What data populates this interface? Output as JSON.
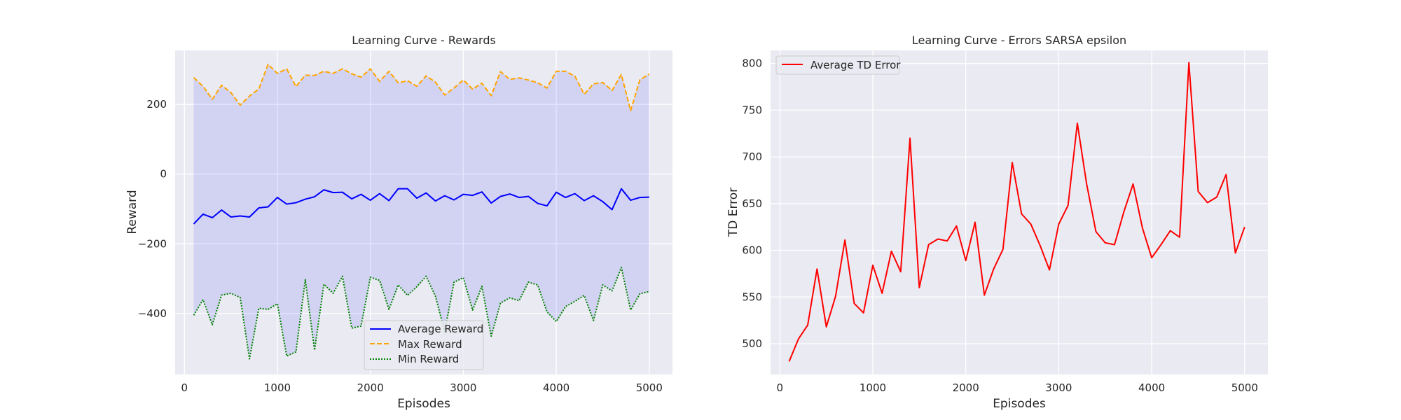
{
  "chart_data": [
    {
      "type": "line",
      "title": "Learning Curve - Rewards",
      "xlabel": "Episodes",
      "ylabel": "Reward",
      "xlim": [
        -100,
        5250
      ],
      "ylim": [
        -575,
        355
      ],
      "xticks": [
        0,
        1000,
        2000,
        3000,
        4000,
        5000
      ],
      "yticks": [
        -400,
        -200,
        0,
        200
      ],
      "grid": true,
      "legend": "bottom-center",
      "x": [
        100,
        200,
        300,
        400,
        500,
        600,
        700,
        800,
        900,
        1000,
        1100,
        1200,
        1300,
        1400,
        1500,
        1600,
        1700,
        1800,
        1900,
        2000,
        2100,
        2200,
        2300,
        2400,
        2500,
        2600,
        2700,
        2800,
        2900,
        3000,
        3100,
        3200,
        3300,
        3400,
        3500,
        3600,
        3700,
        3800,
        3900,
        4000,
        4100,
        4200,
        4300,
        4400,
        4500,
        4600,
        4700,
        4800,
        4900,
        5000
      ],
      "fill_between": {
        "lower": "Min Reward",
        "upper": "Max Reward",
        "color": "#0000ff",
        "opacity": 0.1
      },
      "series": [
        {
          "name": "Average Reward",
          "color": "#0000ff",
          "style": "solid",
          "values": [
            -143,
            -115,
            -125,
            -103,
            -123,
            -120,
            -123,
            -97,
            -94,
            -67,
            -86,
            -82,
            -72,
            -65,
            -45,
            -53,
            -52,
            -71,
            -58,
            -75,
            -56,
            -76,
            -42,
            -42,
            -69,
            -54,
            -77,
            -62,
            -74,
            -58,
            -61,
            -51,
            -83,
            -64,
            -57,
            -67,
            -64,
            -84,
            -91,
            -52,
            -67,
            -56,
            -76,
            -62,
            -79,
            -102,
            -42,
            -75,
            -67,
            -66
          ]
        },
        {
          "name": "Max Reward",
          "color": "#ffa500",
          "style": "dashed",
          "values": [
            277,
            252,
            215,
            255,
            234,
            198,
            224,
            244,
            315,
            289,
            302,
            251,
            284,
            283,
            295,
            289,
            302,
            288,
            278,
            302,
            266,
            295,
            262,
            268,
            252,
            282,
            264,
            227,
            247,
            270,
            244,
            261,
            225,
            294,
            272,
            276,
            270,
            262,
            247,
            295,
            295,
            281,
            229,
            259,
            263,
            240,
            286,
            182,
            271,
            287
          ]
        },
        {
          "name": "Min Reward",
          "color": "#008000",
          "style": "dotted",
          "values": [
            -405,
            -360,
            -432,
            -347,
            -342,
            -354,
            -530,
            -385,
            -388,
            -372,
            -522,
            -510,
            -303,
            -505,
            -316,
            -342,
            -293,
            -442,
            -436,
            -296,
            -305,
            -388,
            -318,
            -348,
            -323,
            -293,
            -350,
            -452,
            -310,
            -297,
            -390,
            -322,
            -465,
            -370,
            -355,
            -363,
            -310,
            -318,
            -395,
            -423,
            -380,
            -365,
            -348,
            -420,
            -318,
            -335,
            -268,
            -390,
            -343,
            -337
          ]
        }
      ]
    },
    {
      "type": "line",
      "title": "Learning Curve - Errors SARSA epsilon",
      "xlabel": "Episodes",
      "ylabel": "TD Error",
      "xlim": [
        -100,
        5250
      ],
      "ylim": [
        467,
        814
      ],
      "xticks": [
        0,
        1000,
        2000,
        3000,
        4000,
        5000
      ],
      "yticks": [
        500,
        550,
        600,
        650,
        700,
        750,
        800
      ],
      "grid": true,
      "legend": "top-left",
      "x": [
        100,
        200,
        300,
        400,
        500,
        600,
        700,
        800,
        900,
        1000,
        1100,
        1200,
        1300,
        1400,
        1500,
        1600,
        1700,
        1800,
        1900,
        2000,
        2100,
        2200,
        2300,
        2400,
        2500,
        2600,
        2700,
        2800,
        2900,
        3000,
        3100,
        3200,
        3300,
        3400,
        3500,
        3600,
        3700,
        3800,
        3900,
        4000,
        4100,
        4200,
        4300,
        4400,
        4500,
        4600,
        4700,
        4800,
        4900,
        5000
      ],
      "series": [
        {
          "name": "Average TD Error",
          "color": "#ff0000",
          "style": "solid",
          "values": [
            481,
            505,
            520,
            580,
            518,
            551,
            611,
            543,
            533,
            584,
            554,
            599,
            577,
            720,
            560,
            606,
            612,
            610,
            626,
            589,
            630,
            552,
            580,
            601,
            694,
            639,
            628,
            605,
            579,
            628,
            648,
            736,
            671,
            620,
            608,
            606,
            641,
            671,
            624,
            592,
            606,
            621,
            614,
            801,
            663,
            651,
            657,
            681,
            597,
            625
          ]
        }
      ]
    }
  ]
}
